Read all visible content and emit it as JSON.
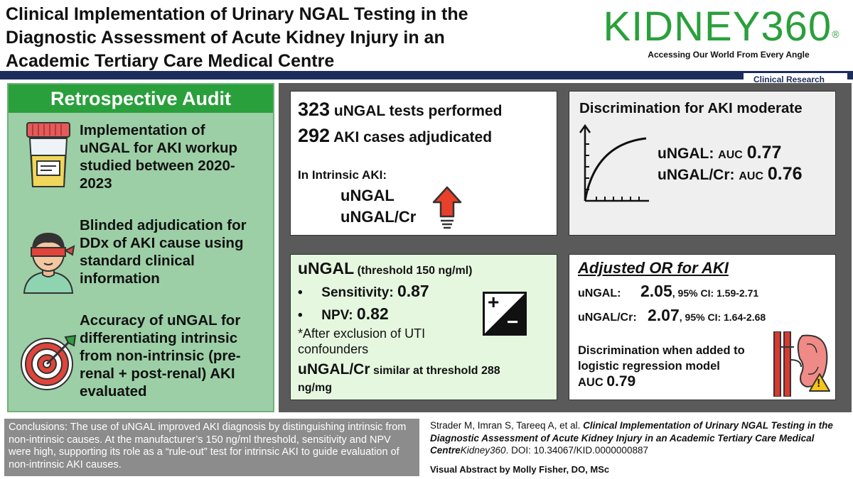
{
  "header": {
    "title_line1": "Clinical Implementation of Urinary NGAL Testing in the",
    "title_line2": "Diagnostic Assessment of Acute Kidney Injury in an",
    "title_line3": "Academic Tertiary Care Medical Centre",
    "logo_text": "KIDNEY360",
    "logo_mark": "®",
    "tagline": "Accessing Our World From Every Angle",
    "category": "Clinical Research"
  },
  "audit": {
    "heading": "Retrospective Audit",
    "item1": [
      "Implementation of",
      "uNGAL for AKI workup",
      "studied between 2020-",
      "2023"
    ],
    "item2": [
      "Blinded adjudication for",
      "DDx of AKI cause using",
      "standard clinical",
      "information"
    ],
    "item3": [
      "Accuracy of uNGAL for",
      "differentiating intrinsic",
      "from non-intrinsic (pre-",
      "renal + post-renal) AKI",
      "evaluated"
    ]
  },
  "tests": {
    "count1": "323",
    "label1": "uNGAL tests performed",
    "count2": "292",
    "label2": "AKI cases adjudicated",
    "intrinsic_label": "In Intrinsic AKI:",
    "marker1": "uNGAL",
    "marker2": "uNGAL/Cr"
  },
  "discrimination": {
    "title": "Discrimination for AKI moderate",
    "row1_label": "uNGAL:",
    "row1_auc": "AUC",
    "row1_value": "0.77",
    "row2_label": "uNGAL/Cr:",
    "row2_auc": "AUC",
    "row2_value": "0.76"
  },
  "threshold": {
    "title": "uNGAL",
    "subtitle": "(threshold 150 ng/ml)",
    "bullet": "•",
    "sens_label": "Sensitivity:",
    "sens_value": "0.87",
    "npv_label": "NPV:",
    "npv_value": "0.82",
    "note_line1": "*After exclusion of UTI",
    "note_line2": "confounders",
    "ratio_title": "uNGAL/Cr",
    "ratio_text": "similar at threshold 288",
    "ratio_unit": "ng/mg",
    "plus": "+",
    "minus": "−"
  },
  "odds": {
    "title": "Adjusted OR for AKI",
    "row1_label": "uNGAL:",
    "row1_value": "2.05",
    "row1_ci": ", 95% CI: 1.59-2.71",
    "row2_label": "uNGAL/Cr:",
    "row2_value": "2.07",
    "row2_ci": ", 95% CI: 1.64-2.68",
    "disc_line1": "Discrimination when added to",
    "disc_line2": "logistic regression model",
    "auc_label": "AUC",
    "auc_value": "0.79",
    "warning": "!"
  },
  "footer": {
    "conclusion": "Conclusions: The use of uNGAL improved AKI diagnosis by distinguishing intrinsic from non-intrinsic causes. At the manufacturer’s 150 ng/ml threshold, sensitivity and NPV were high, supporting its role as a “rule-out” test for intrinsic AKI to guide evaluation of non-intrinsic AKI causes.",
    "authors": "Strader M, Imran S, Tareeq A, et al.",
    "article_title": "Clinical Implementation of Urinary NGAL Testing in the Diagnostic Assessment of Acute Kidney Injury in an Academic Tertiary Care Medical Centre",
    "journal": "Kidney360",
    "doi": ". DOI: 10.34067/KID.0000000887",
    "credit": "Visual Abstract by Molly Fisher, DO, MSc"
  },
  "colors": {
    "brand_green": "#2aa03c",
    "navy": "#1c2c5c",
    "panel_green": "#9ccfa6",
    "alert_red": "#e8402a"
  }
}
